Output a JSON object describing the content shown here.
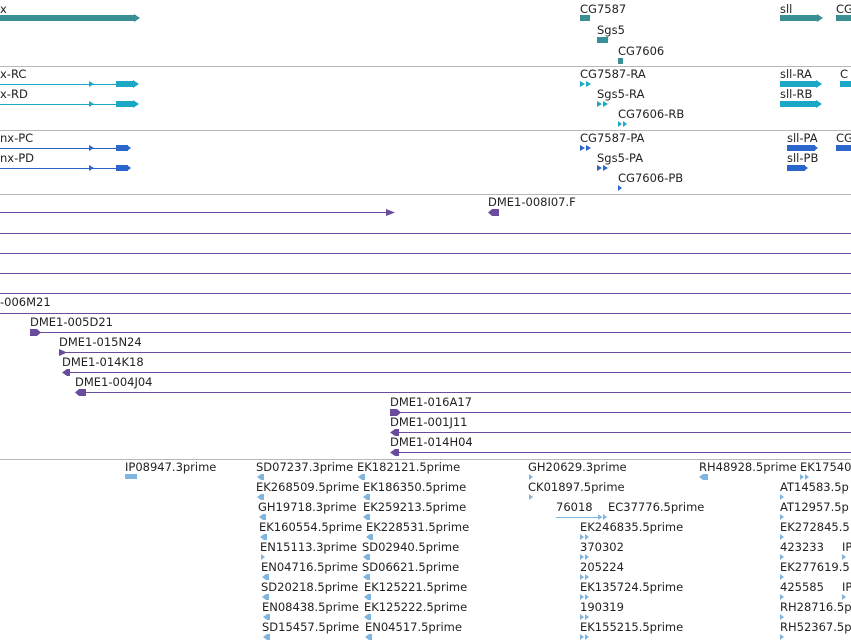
{
  "colors": {
    "gene": "#3a8f94",
    "transcript": "#1ba8c4",
    "protein": "#2a66cc",
    "clone": "#6a4c9c",
    "est": "#7fb6e0"
  },
  "tracks": {
    "gene": {
      "labels": [
        "x",
        "CG7587",
        "Sgs5",
        "CG7606",
        "sll",
        "CG"
      ]
    },
    "transcript": {
      "labels": [
        "x-RC",
        "x-RD",
        "CG7587-RA",
        "Sgs5-RA",
        "CG7606-RB",
        "sll-RA",
        "sll-RB",
        "C"
      ]
    },
    "protein": {
      "labels": [
        "nx-PC",
        "nx-PD",
        "CG7587-PA",
        "Sgs5-PA",
        "CG7606-PB",
        "sll-PA",
        "sll-PB",
        "CG"
      ]
    },
    "clone": {
      "labels": [
        "DME1-008I07.F",
        "-006M21",
        "DME1-005D21",
        "DME1-015N24",
        "DME1-014K18",
        "DME1-004J04",
        "DME1-016A17",
        "DME1-001J11",
        "DME1-014H04"
      ]
    },
    "est": {
      "labels": [
        "IP08947.3prime",
        "SD07237.3prime",
        "EK268509.5prime",
        "GH19718.3prime",
        "EK160554.5prime",
        "EN15113.3prime",
        "EN04716.5prime",
        "SD20218.5prime",
        "EN08438.5prime",
        "SD15457.5prime",
        "EK182121.5prime",
        "EK186350.5prime",
        "EK259213.5prime",
        "EK228531.5prime",
        "SD02940.5prime",
        "SD06621.5prime",
        "EK125221.5prime",
        "EK125222.5prime",
        "EN04517.5prime",
        "GH20629.3prime",
        "CK01897.5prime",
        "76018",
        "EC37776.5prime",
        "EK246835.5prime",
        "370302",
        "205224",
        "EK135724.5prime",
        "190319",
        "EK155215.5prime",
        "RH48928.5prime",
        "EK17540",
        "AT14583.5p",
        "AT12957.5p",
        "EK272845.5",
        "423233",
        "IP",
        "EK277619.5",
        "425585",
        "IP",
        "RH28716.5p",
        "RH52367.5p"
      ]
    }
  }
}
